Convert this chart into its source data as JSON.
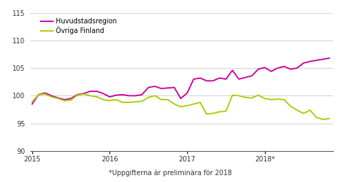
{
  "ylim": [
    90,
    115
  ],
  "yticks": [
    90,
    95,
    100,
    105,
    110,
    115
  ],
  "legend": [
    "Huvudstadsregion",
    "Övriga Finland"
  ],
  "color_hst": "#cc0099",
  "color_ovr": "#aacc00",
  "line_width": 1.4,
  "footnote": "*Uppgifterna är preliminära för 2018",
  "hst": [
    98.5,
    100.2,
    100.5,
    100.0,
    99.6,
    99.3,
    99.5,
    100.2,
    100.4,
    100.8,
    100.8,
    100.4,
    99.8,
    100.1,
    100.2,
    100.0,
    100.0,
    100.2,
    101.5,
    101.7,
    101.3,
    101.4,
    101.5,
    99.5,
    100.5,
    103.0,
    103.2,
    102.7,
    102.7,
    103.2,
    103.0,
    104.6,
    103.0,
    103.3,
    103.6,
    104.8,
    105.1,
    104.4,
    105.0,
    105.3,
    104.8,
    105.0,
    105.9,
    106.2,
    106.4,
    106.6,
    106.8
  ],
  "ovr": [
    98.9,
    100.2,
    100.3,
    99.8,
    99.5,
    99.1,
    99.2,
    100.1,
    100.3,
    100.0,
    99.8,
    99.3,
    99.1,
    99.3,
    98.8,
    98.8,
    98.9,
    99.0,
    99.7,
    100.0,
    99.3,
    99.3,
    98.5,
    98.0,
    98.2,
    98.5,
    98.8,
    96.7,
    96.8,
    97.1,
    97.2,
    100.1,
    100.0,
    99.7,
    99.6,
    100.1,
    99.5,
    99.3,
    99.4,
    99.3,
    98.1,
    97.4,
    96.8,
    97.4,
    96.1,
    95.7,
    95.9
  ]
}
